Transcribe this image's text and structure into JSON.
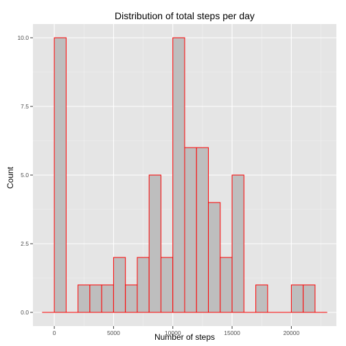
{
  "chart_data": {
    "type": "bar",
    "title": "Distribution of total steps per day",
    "xlabel": "Number of steps",
    "ylabel": "Count",
    "bin_width": 1000,
    "bins": [
      {
        "x": -500,
        "count": 0
      },
      {
        "x": 500,
        "count": 10
      },
      {
        "x": 1500,
        "count": 0
      },
      {
        "x": 2500,
        "count": 1
      },
      {
        "x": 3500,
        "count": 1
      },
      {
        "x": 4500,
        "count": 1
      },
      {
        "x": 5500,
        "count": 2
      },
      {
        "x": 6500,
        "count": 1
      },
      {
        "x": 7500,
        "count": 2
      },
      {
        "x": 8500,
        "count": 5
      },
      {
        "x": 9500,
        "count": 2
      },
      {
        "x": 10500,
        "count": 10
      },
      {
        "x": 11500,
        "count": 6
      },
      {
        "x": 12500,
        "count": 6
      },
      {
        "x": 13500,
        "count": 4
      },
      {
        "x": 14500,
        "count": 2
      },
      {
        "x": 15500,
        "count": 5
      },
      {
        "x": 16500,
        "count": 0
      },
      {
        "x": 17500,
        "count": 1
      },
      {
        "x": 18500,
        "count": 0
      },
      {
        "x": 19500,
        "count": 0
      },
      {
        "x": 20500,
        "count": 1
      },
      {
        "x": 21500,
        "count": 1
      },
      {
        "x": 22500,
        "count": 0
      }
    ],
    "xlim": [
      -1800,
      23800
    ],
    "ylim": [
      -0.5,
      10.5
    ],
    "x_ticks": [
      0,
      5000,
      10000,
      15000,
      20000
    ],
    "x_tick_labels": [
      "0",
      "5000",
      "10000",
      "15000",
      "20000"
    ],
    "y_ticks": [
      0,
      2.5,
      5,
      7.5,
      10
    ],
    "y_tick_labels": [
      "0.0",
      "2.5",
      "5.0",
      "7.5",
      "10.0"
    ],
    "grid": true,
    "bar_fill": "#bebebe",
    "bar_stroke": "#ff0000",
    "panel_background": "#e5e5e5",
    "grid_color": "#ffffff"
  }
}
